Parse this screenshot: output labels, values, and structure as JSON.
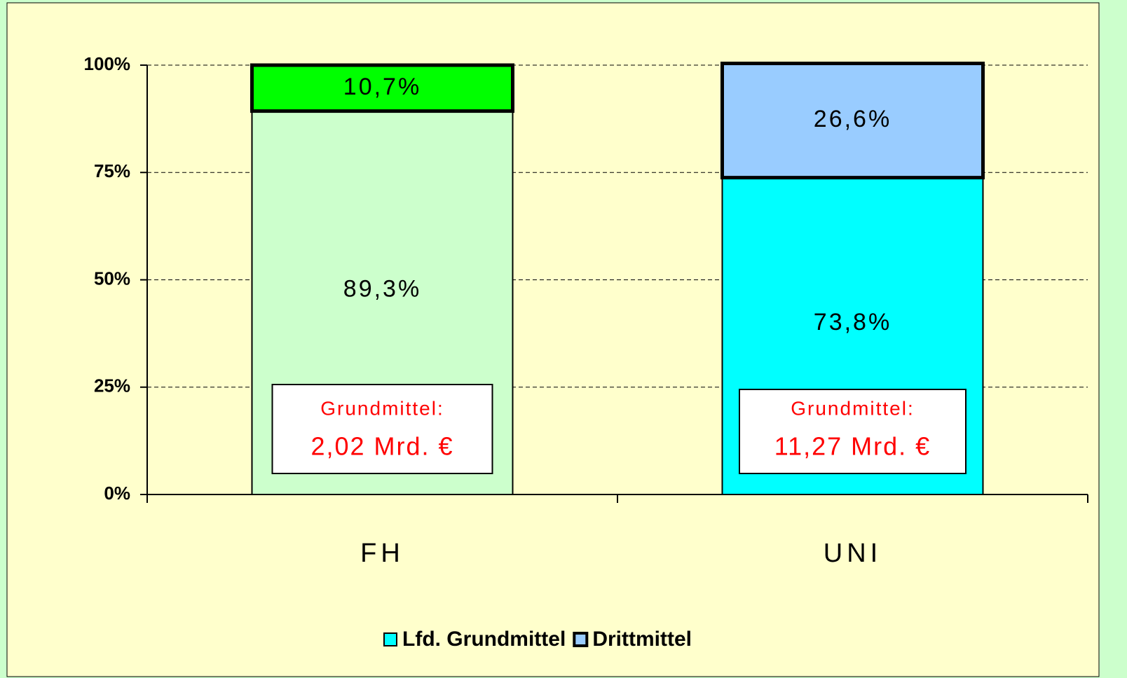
{
  "chart_data": {
    "type": "bar",
    "stacked": true,
    "categories": [
      "FH",
      "UNI"
    ],
    "series": [
      {
        "name": "Lfd. Grundmittel",
        "color": "#00ffff",
        "point_colors": [
          "#ccffcc",
          "#00ffff"
        ],
        "values": [
          89.3,
          73.8
        ],
        "value_labels": [
          "89,3%",
          "73,8%"
        ]
      },
      {
        "name": "Drittmittel",
        "color": "#99ccff",
        "point_colors": [
          "#00ff00",
          "#99ccff"
        ],
        "values": [
          10.7,
          26.6
        ],
        "value_labels": [
          "10,7%",
          "26,6%"
        ]
      }
    ],
    "ylim": [
      0,
      100
    ],
    "yticks": [
      {
        "value": 0,
        "label": "0%"
      },
      {
        "value": 25,
        "label": "25%"
      },
      {
        "value": 50,
        "label": "50%"
      },
      {
        "value": 75,
        "label": "75%"
      },
      {
        "value": 100,
        "label": "100%"
      }
    ],
    "grid": true,
    "legend": "bottom",
    "annotations": [
      {
        "lines": [
          "Grundmittel:",
          "2,02 Mrd. €"
        ]
      },
      {
        "lines": [
          "Grundmittel:",
          "11,27 Mrd. €"
        ]
      }
    ]
  }
}
